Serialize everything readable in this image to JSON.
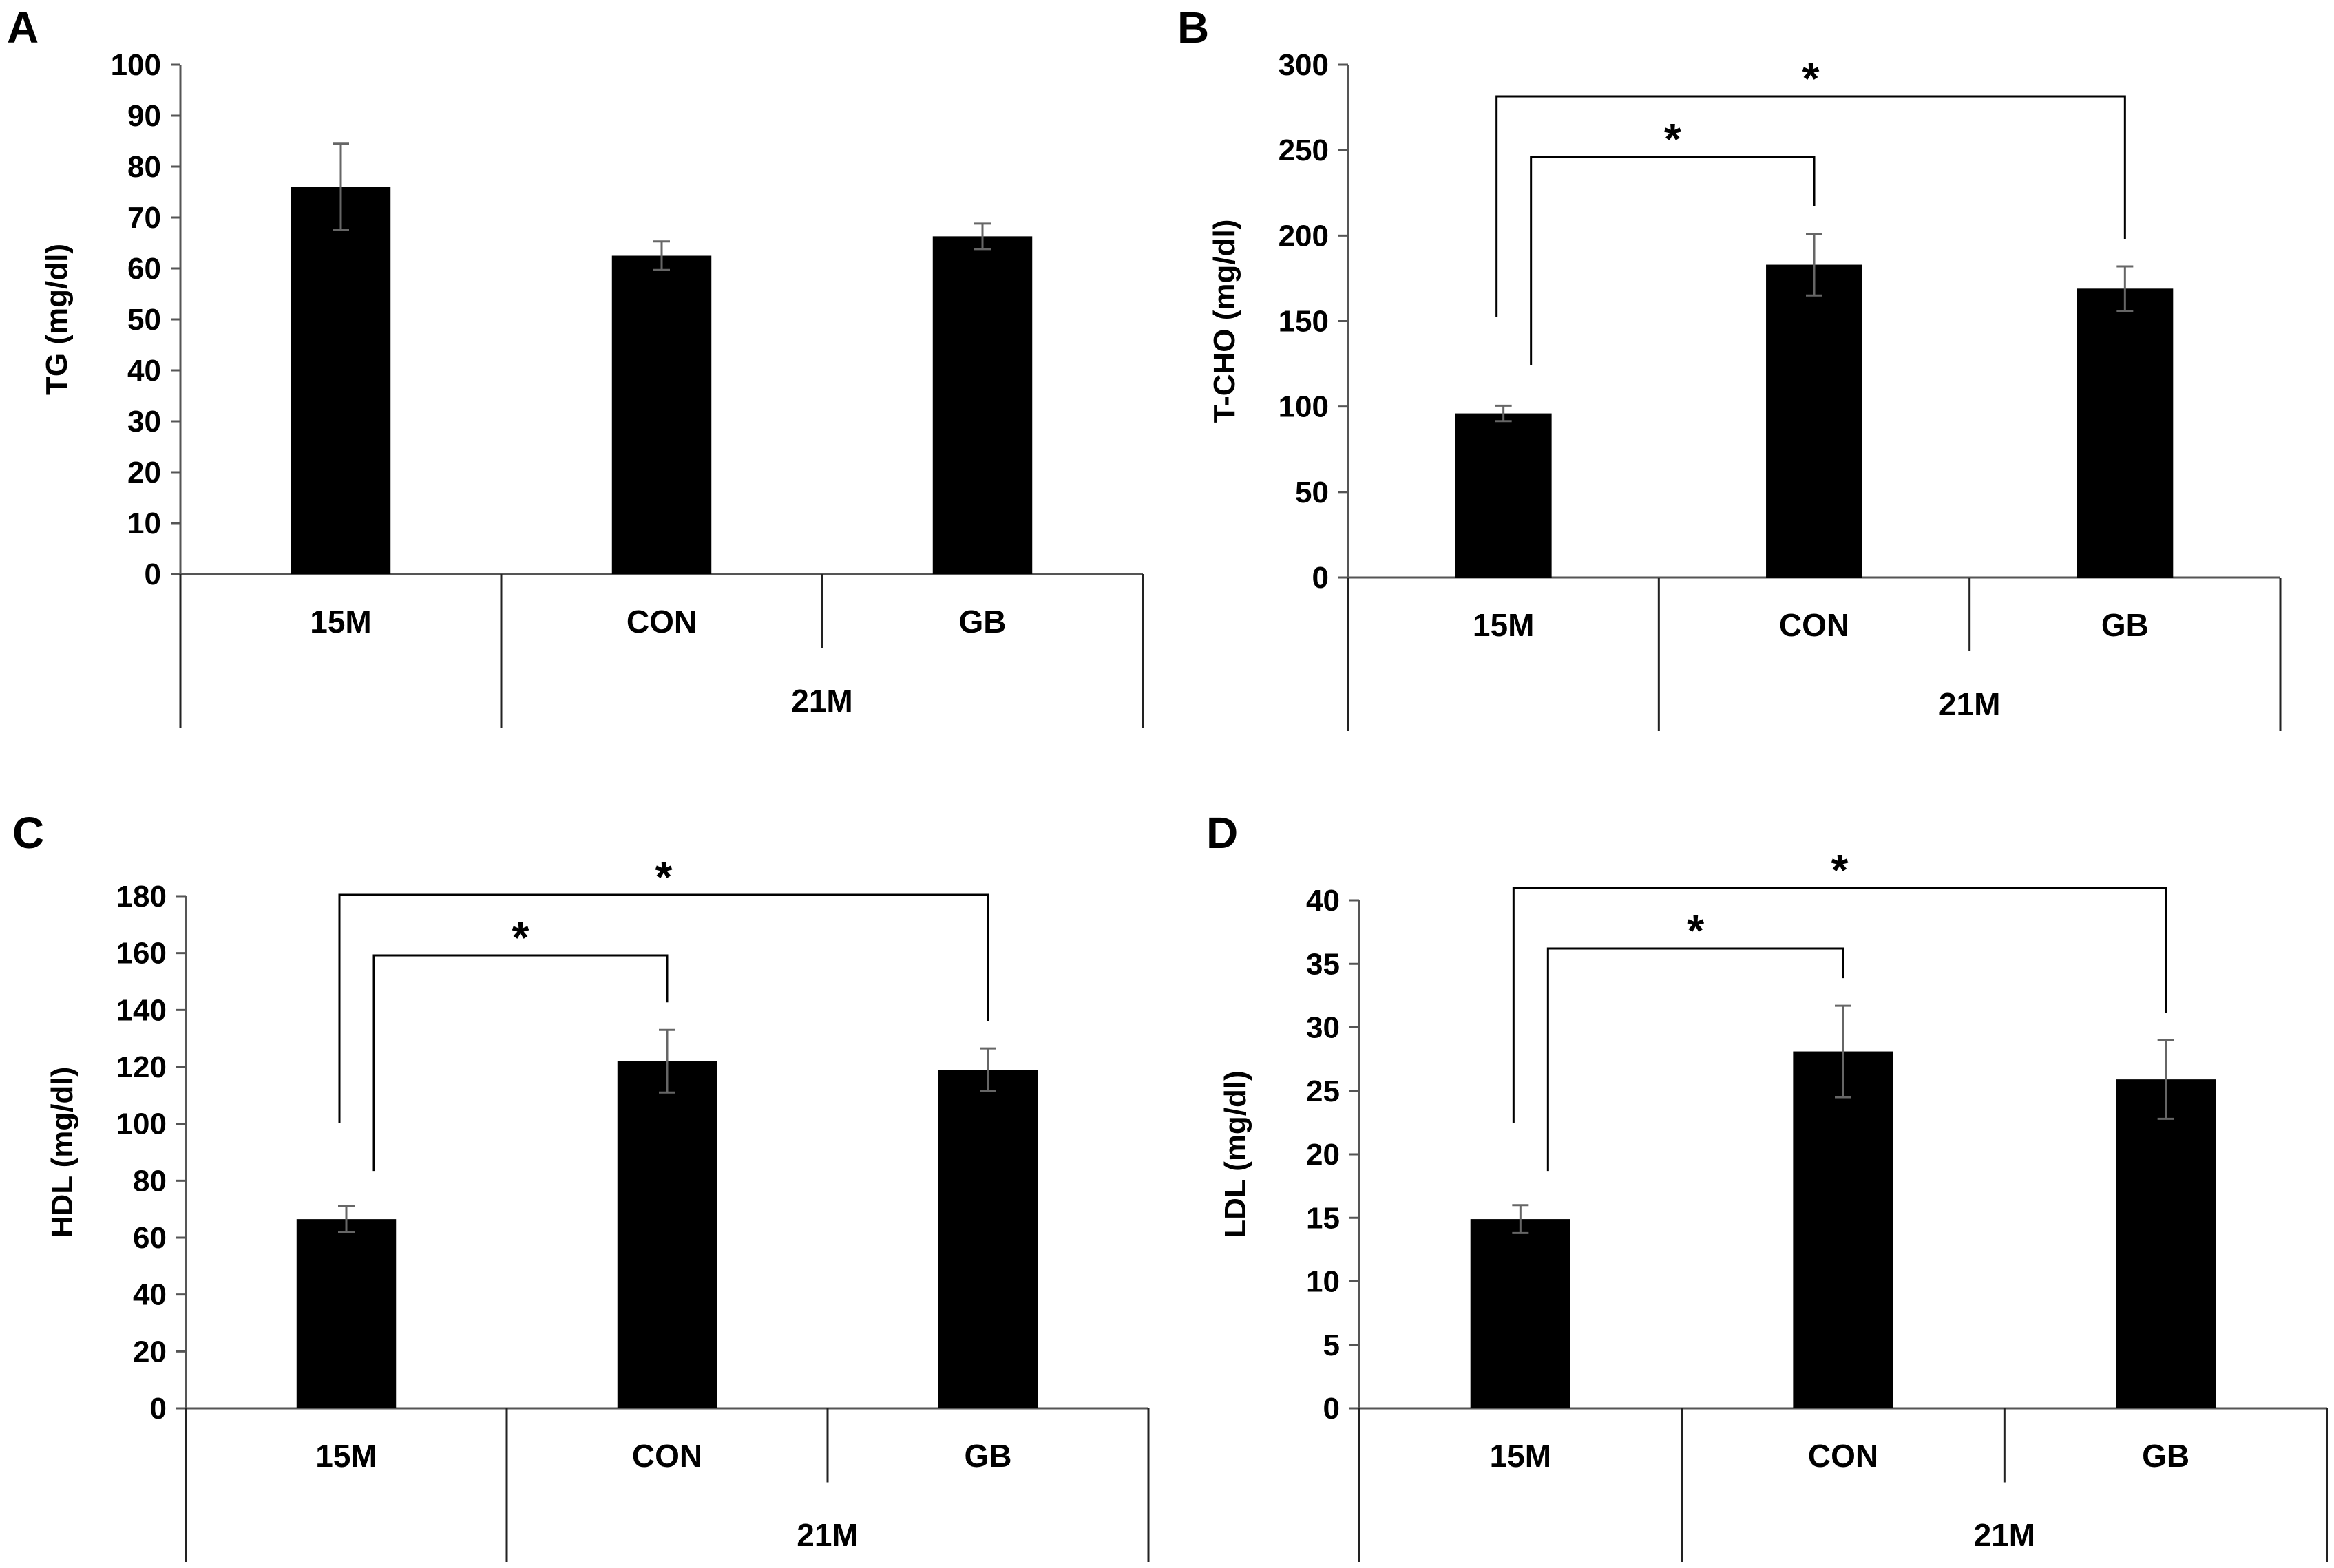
{
  "figure": {
    "group_label": "21M"
  },
  "chart_data": [
    {
      "panel": "A",
      "type": "bar",
      "ylabel": "TG (mg/dl)",
      "categories": [
        "15M",
        "CON",
        "GB"
      ],
      "group_label": "21M",
      "values": [
        76,
        62.5,
        66.3
      ],
      "errors": [
        8.5,
        2.8,
        2.5
      ],
      "ylim": [
        0,
        100
      ],
      "yticks": [
        0,
        10,
        20,
        30,
        40,
        50,
        60,
        70,
        80,
        90,
        100
      ],
      "significance": []
    },
    {
      "panel": "B",
      "type": "bar",
      "ylabel": "T-CHO (mg/dl)",
      "categories": [
        "15M",
        "CON",
        "GB"
      ],
      "group_label": "21M",
      "values": [
        96,
        183,
        169
      ],
      "errors": [
        4.5,
        18,
        13
      ],
      "ylim": [
        0,
        300
      ],
      "yticks": [
        0,
        50,
        100,
        150,
        200,
        250,
        300
      ],
      "significance": [
        {
          "from": "15M",
          "to": "CON",
          "label": "*"
        },
        {
          "from": "15M",
          "to": "GB",
          "label": "*"
        }
      ]
    },
    {
      "panel": "C",
      "type": "bar",
      "ylabel": "HDL (mg/dl)",
      "categories": [
        "15M",
        "CON",
        "GB"
      ],
      "group_label": "21M",
      "values": [
        66.5,
        122,
        119
      ],
      "errors": [
        4.5,
        11,
        7.5
      ],
      "ylim": [
        0,
        180
      ],
      "yticks": [
        0,
        20,
        40,
        60,
        80,
        100,
        120,
        140,
        160,
        180
      ],
      "significance": [
        {
          "from": "15M",
          "to": "CON",
          "label": "*"
        },
        {
          "from": "15M",
          "to": "GB",
          "label": "*"
        }
      ]
    },
    {
      "panel": "D",
      "type": "bar",
      "ylabel": "LDL (mg/dl)",
      "categories": [
        "15M",
        "CON",
        "GB"
      ],
      "group_label": "21M",
      "values": [
        14.9,
        28.1,
        25.9
      ],
      "errors": [
        1.1,
        3.6,
        3.1
      ],
      "ylim": [
        0,
        40
      ],
      "yticks": [
        0,
        5,
        10,
        15,
        20,
        25,
        30,
        35,
        40
      ],
      "significance": [
        {
          "from": "15M",
          "to": "CON",
          "label": "*"
        },
        {
          "from": "15M",
          "to": "GB",
          "label": "*"
        }
      ]
    }
  ]
}
